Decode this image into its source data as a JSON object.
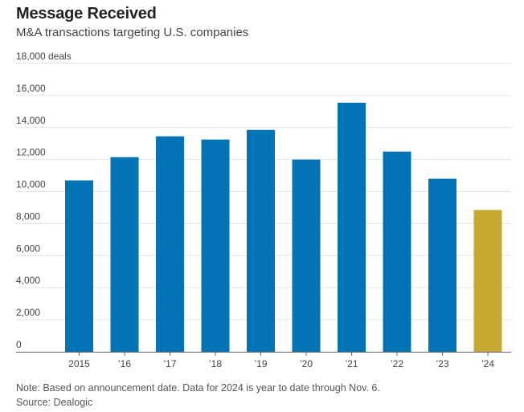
{
  "header": {
    "title": "Message Received",
    "subtitle": "M&A transactions targeting U.S. companies"
  },
  "footer": {
    "note": "Note: Based on announcement date. Data for 2024 is year to date through Nov. 6.",
    "source": "Source: Dealogic"
  },
  "chart_data": {
    "type": "bar",
    "categories": [
      "2015",
      "’16",
      "’17",
      "’18",
      "’19",
      "’20",
      "’21",
      "’22",
      "’23",
      "’24"
    ],
    "values": [
      10700,
      12150,
      13450,
      13250,
      13850,
      12000,
      15550,
      12500,
      10800,
      8850
    ],
    "colors": [
      "#0274b6",
      "#0274b6",
      "#0274b6",
      "#0274b6",
      "#0274b6",
      "#0274b6",
      "#0274b6",
      "#0274b6",
      "#0274b6",
      "#c7a832"
    ],
    "ylim": [
      0,
      18000
    ],
    "yticks": [
      0,
      2000,
      4000,
      6000,
      8000,
      10000,
      12000,
      14000,
      16000,
      18000
    ],
    "ytick_labels": [
      "0",
      "2,000",
      "4,000",
      "6,000",
      "8,000",
      "10,000",
      "12,000",
      "14,000",
      "16,000",
      "18,000 deals"
    ],
    "grid": true,
    "grid_color": "#e2e2e2",
    "axis_color": "#666666",
    "legend": "none"
  }
}
